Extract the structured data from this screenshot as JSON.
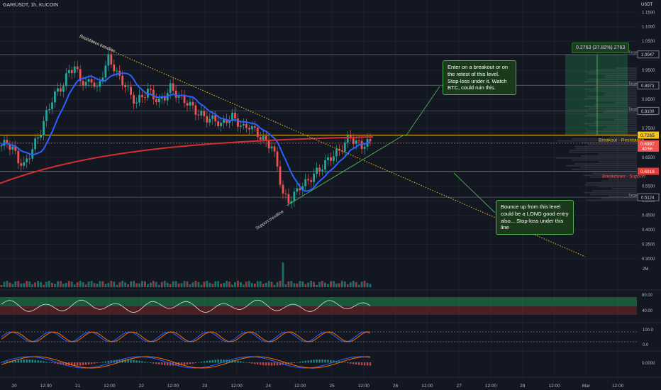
{
  "header": {
    "symbol": "GARIUSDT, 1h, KUCOIN",
    "currency": "USDT"
  },
  "colors": {
    "background": "#131722",
    "up": "#26a69a",
    "down": "#ef5350",
    "ma_blue": "#2962ff",
    "ma_red": "#d32f2f",
    "breakout": "#f5c518",
    "support": "#ff1744",
    "callout_fill": "#1b3a1b",
    "callout_border": "#4caf50"
  },
  "chart_data": {
    "type": "candlestick",
    "price_axis": {
      "ticks": [
        "1.1500",
        "1.1000",
        "1.0500",
        "1.0000",
        "0.9500",
        "0.9000",
        "0.8500",
        "0.8000",
        "0.7500",
        "0.7000",
        "0.6500",
        "0.6000",
        "0.5500",
        "0.5000",
        "0.4500",
        "0.4000",
        "0.3500",
        "0.3000"
      ],
      "ylim": [
        0.3,
        1.18
      ]
    },
    "time_axis": {
      "ticks": [
        "20",
        "12:00",
        "21",
        "12:00",
        "22",
        "12:00",
        "23",
        "12:00",
        "24",
        "12:00",
        "25",
        "12:00",
        "26",
        "12:00",
        "27",
        "12:00",
        "28",
        "12:00",
        "Mar",
        "12:00"
      ]
    },
    "levels": [
      {
        "name": "Breakout - Resistance",
        "value": 0.7265,
        "label": "0.7265"
      },
      {
        "name": "Breakdown - Support",
        "value": 0.6018,
        "label": "0.6018"
      }
    ],
    "current_price": {
      "label": "0.6987",
      "countdown": "40:56"
    },
    "targets": [
      {
        "label": "Target",
        "value": "1.0047"
      },
      {
        "label": "Target",
        "value": "0.8973"
      },
      {
        "label": "Target",
        "value": "0.8100"
      },
      {
        "label": "Target",
        "value": "0.5124"
      }
    ],
    "ruler_text": "0.2763 (37.82%) 2763",
    "trendlines": [
      {
        "name": "Resistance trendline"
      },
      {
        "name": "Support trendline"
      }
    ],
    "volume_axis": {
      "label": "2M"
    },
    "rsi_axis": [
      "80.00",
      "40.00"
    ],
    "stoch_axis": [
      "100.0",
      "0.0"
    ],
    "macd_axis": [
      "0.0000"
    ],
    "series_hint": {
      "close_path": [
        0.69,
        0.7,
        0.68,
        0.64,
        0.62,
        0.66,
        0.7,
        0.74,
        0.8,
        0.85,
        0.88,
        0.9,
        0.95,
        0.96,
        0.92,
        0.9,
        0.92,
        0.88,
        0.94,
        0.99,
        0.96,
        0.92,
        0.9,
        0.86,
        0.84,
        0.86,
        0.88,
        0.86,
        0.84,
        0.86,
        0.89,
        0.87,
        0.85,
        0.84,
        0.82,
        0.8,
        0.79,
        0.78,
        0.78,
        0.76,
        0.78,
        0.79,
        0.77,
        0.75,
        0.76,
        0.74,
        0.72,
        0.7,
        0.69,
        0.62,
        0.52,
        0.5,
        0.52,
        0.55,
        0.56,
        0.58,
        0.6,
        0.62,
        0.64,
        0.66,
        0.67,
        0.7,
        0.72,
        0.7,
        0.69,
        0.7
      ]
    }
  },
  "callouts": {
    "breakout": "Enter on a breakout or on the retest of this level. Stop-loss under it. Watch BTC, could ruin this.",
    "bounce": "Bounce up from this level could be a LONG good entry also... Stop-loss under this line"
  }
}
